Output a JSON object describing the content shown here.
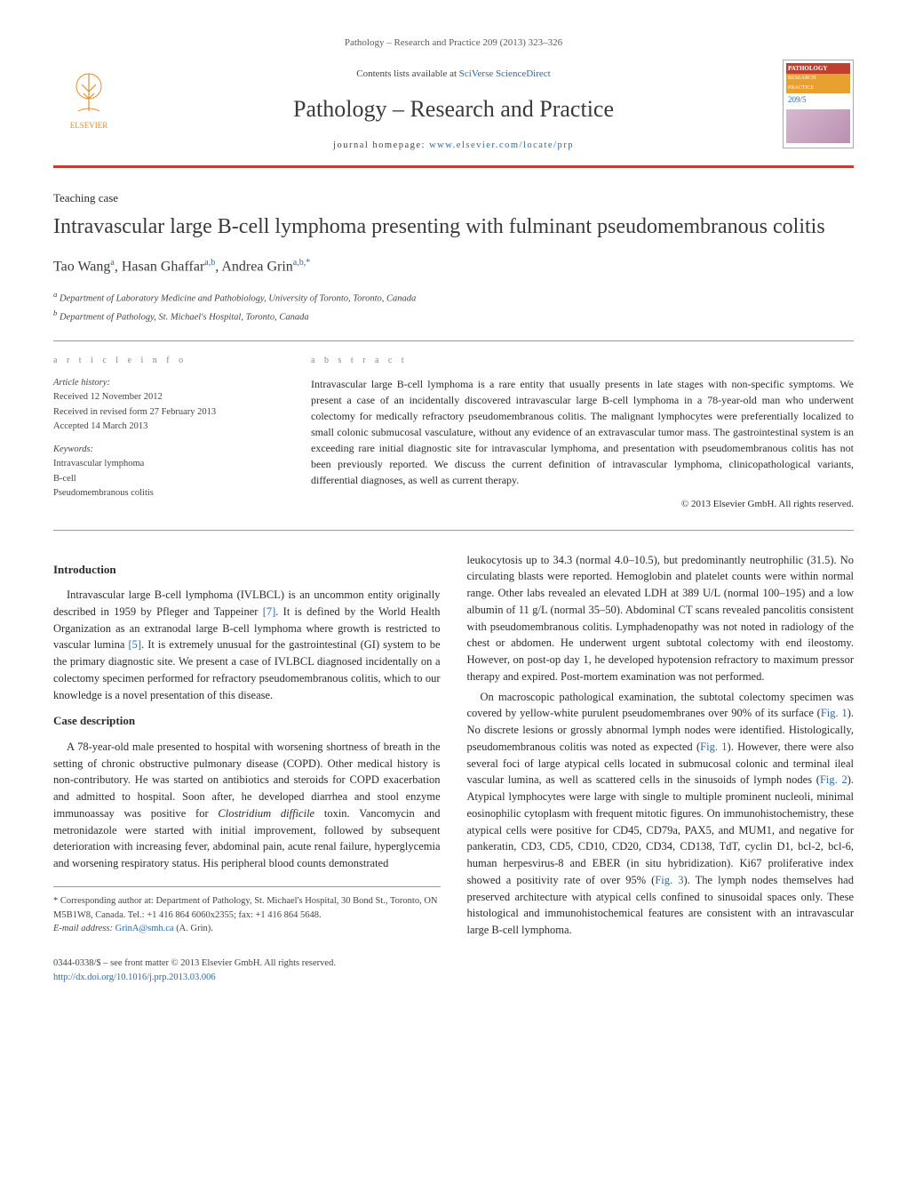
{
  "header": {
    "citation": "Pathology – Research and Practice 209 (2013) 323–326",
    "contents_prefix": "Contents lists available at ",
    "contents_link": "SciVerse ScienceDirect",
    "journal_name": "Pathology – Research and Practice",
    "homepage_prefix": "journal homepage: ",
    "homepage_url": "www.elsevier.com/locate/prp",
    "publisher_name": "ELSEVIER",
    "cover": {
      "line1": "PATHOLOGY",
      "line2": "RESEARCH",
      "line3": "PRACTICE",
      "vol": "209/5"
    },
    "colors": {
      "accent_rule": "#c04030",
      "link": "#2b6aa8",
      "publisher_orange": "#e98b2b"
    }
  },
  "article": {
    "type": "Teaching case",
    "title": "Intravascular large B-cell lymphoma presenting with fulminant pseudomembranous colitis",
    "authors_html": "Tao Wang<sup>a</sup>, Hasan Ghaffar<sup>a,b</sup>, Andrea Grin<sup>a,b,*</sup>",
    "affiliations": [
      "a Department of Laboratory Medicine and Pathobiology, University of Toronto, Toronto, Canada",
      "b Department of Pathology, St. Michael's Hospital, Toronto, Canada"
    ]
  },
  "meta": {
    "info_heading": "a r t i c l e   i n f o",
    "history_label": "Article history:",
    "history": [
      "Received 12 November 2012",
      "Received in revised form 27 February 2013",
      "Accepted 14 March 2013"
    ],
    "keywords_label": "Keywords:",
    "keywords": [
      "Intravascular lymphoma",
      "B-cell",
      "Pseudomembranous colitis"
    ],
    "abstract_heading": "a b s t r a c t",
    "abstract": "Intravascular large B-cell lymphoma is a rare entity that usually presents in late stages with non-specific symptoms. We present a case of an incidentally discovered intravascular large B-cell lymphoma in a 78-year-old man who underwent colectomy for medically refractory pseudomembranous colitis. The malignant lymphocytes were preferentially localized to small colonic submucosal vasculature, without any evidence of an extravascular tumor mass. The gastrointestinal system is an exceeding rare initial diagnostic site for intravascular lymphoma, and presentation with pseudomembranous colitis has not been previously reported. We discuss the current definition of intravascular lymphoma, clinicopathological variants, differential diagnoses, as well as current therapy.",
    "copyright": "© 2013 Elsevier GmbH. All rights reserved."
  },
  "body": {
    "intro_heading": "Introduction",
    "intro_p1": "Intravascular large B-cell lymphoma (IVLBCL) is an uncommon entity originally described in 1959 by Pfleger and Tappeiner [7]. It is defined by the World Health Organization as an extranodal large B-cell lymphoma where growth is restricted to vascular lumina [5]. It is extremely unusual for the gastrointestinal (GI) system to be the primary diagnostic site. We present a case of IVLBCL diagnosed incidentally on a colectomy specimen performed for refractory pseudomembranous colitis, which to our knowledge is a novel presentation of this disease.",
    "case_heading": "Case description",
    "case_p1": "A 78-year-old male presented to hospital with worsening shortness of breath in the setting of chronic obstructive pulmonary disease (COPD). Other medical history is non-contributory. He was started on antibiotics and steroids for COPD exacerbation and admitted to hospital. Soon after, he developed diarrhea and stool enzyme immunoassay was positive for Clostridium difficile toxin. Vancomycin and metronidazole were started with initial improvement, followed by subsequent deterioration with increasing fever, abdominal pain, acute renal failure, hyperglycemia and worsening respiratory status. His peripheral blood counts demonstrated",
    "case_p2": "leukocytosis up to 34.3 (normal 4.0–10.5), but predominantly neutrophilic (31.5). No circulating blasts were reported. Hemoglobin and platelet counts were within normal range. Other labs revealed an elevated LDH at 389 U/L (normal 100–195) and a low albumin of 11 g/L (normal 35–50). Abdominal CT scans revealed pancolitis consistent with pseudomembranous colitis. Lymphadenopathy was not noted in radiology of the chest or abdomen. He underwent urgent subtotal colectomy with end ileostomy. However, on post-op day 1, he developed hypotension refractory to maximum pressor therapy and expired. Post-mortem examination was not performed.",
    "case_p3": "On macroscopic pathological examination, the subtotal colectomy specimen was covered by yellow-white purulent pseudomembranes over 90% of its surface (Fig. 1). No discrete lesions or grossly abnormal lymph nodes were identified. Histologically, pseudomembranous colitis was noted as expected (Fig. 1). However, there were also several foci of large atypical cells located in submucosal colonic and terminal ileal vascular lumina, as well as scattered cells in the sinusoids of lymph nodes (Fig. 2). Atypical lymphocytes were large with single to multiple prominent nucleoli, minimal eosinophilic cytoplasm with frequent mitotic figures. On immunohistochemistry, these atypical cells were positive for CD45, CD79a, PAX5, and MUM1, and negative for pankeratin, CD3, CD5, CD10, CD20, CD34, CD138, TdT, cyclin D1, bcl-2, bcl-6, human herpesvirus-8 and EBER (in situ hybridization). Ki67 proliferative index showed a positivity rate of over 95% (Fig. 3). The lymph nodes themselves had preserved architecture with atypical cells confined to sinusoidal spaces only. These histological and immunohistochemical features are consistent with an intravascular large B-cell lymphoma."
  },
  "footnote": {
    "corresponding": "* Corresponding author at: Department of Pathology, St. Michael's Hospital, 30 Bond St., Toronto, ON M5B1W8, Canada. Tel.: +1 416 864 6060x2355; fax: +1 416 864 5648.",
    "email_label": "E-mail address: ",
    "email": "GrinA@smh.ca",
    "email_suffix": " (A. Grin)."
  },
  "footer": {
    "issn": "0344-0338/$ – see front matter © 2013 Elsevier GmbH. All rights reserved.",
    "doi": "http://dx.doi.org/10.1016/j.prp.2013.03.006"
  }
}
